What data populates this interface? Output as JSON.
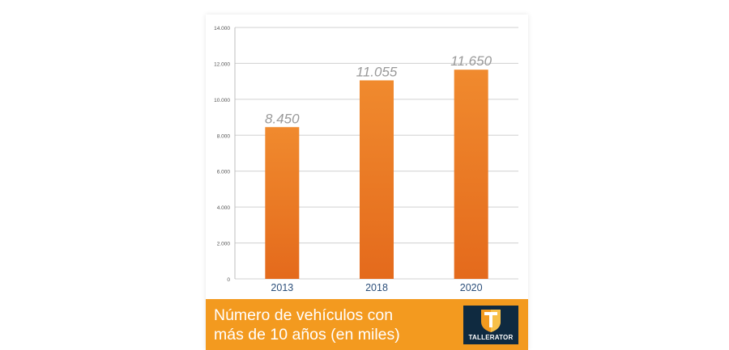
{
  "chart_data": {
    "type": "bar",
    "categories": [
      "2013",
      "2018",
      "2020"
    ],
    "values": [
      8450,
      11055,
      11650
    ],
    "value_labels": [
      "8.450",
      "11.055",
      "11.650"
    ],
    "ylim": [
      0,
      14000
    ],
    "yticks": [
      0,
      2000,
      4000,
      6000,
      8000,
      10000,
      12000,
      14000
    ],
    "ytick_labels": [
      "0",
      "2.000",
      "4.000",
      "6.000",
      "8.000",
      "10.000",
      "12.000",
      "14.000"
    ],
    "grid": true,
    "bar_color": "#f08a2e",
    "bar_color_dark": "#e46a1c"
  },
  "footer": {
    "title": "Número de vehículos con\nmás de 10 años (en miles)",
    "background": "#f39a1f"
  },
  "logo": {
    "text": "TALLERATOR"
  }
}
